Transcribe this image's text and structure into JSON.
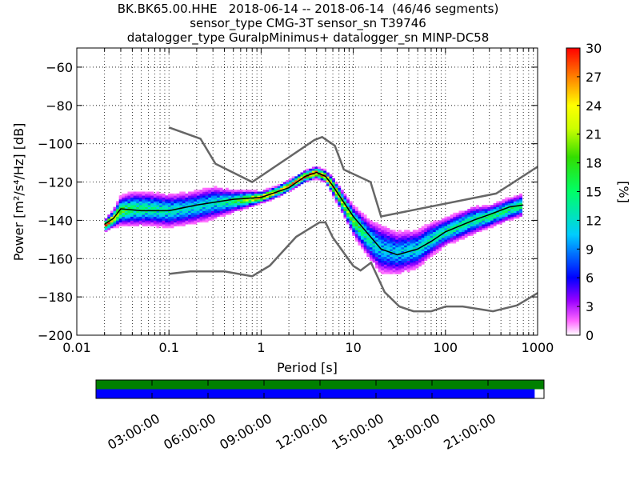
{
  "title_lines": [
    "BK.BK65.00.HHE   2018-06-14 -- 2018-06-14  (46/46 segments)",
    "sensor_type CMG-3T sensor_sn T39746",
    "datalogger_type GuralpMinimus+ datalogger_sn MINP-DC58"
  ],
  "chart_data": {
    "type": "heatmap",
    "xlabel": "Period [s]",
    "ylabel": "Power [m²/s⁴/Hz] [dB]",
    "xscale": "log",
    "xlim": [
      0.01,
      1000
    ],
    "ylim": [
      -200,
      -50
    ],
    "xticks": [
      0.01,
      0.1,
      1,
      10,
      100,
      1000
    ],
    "xtick_labels": [
      "0.01",
      "0.1",
      "1",
      "10",
      "100",
      "1000"
    ],
    "yticks": [
      -200,
      -180,
      -160,
      -140,
      -120,
      -100,
      -80,
      -60
    ],
    "ytick_labels": [
      "−200",
      "−180",
      "−160",
      "−140",
      "−120",
      "−100",
      "−80",
      "−60"
    ],
    "grid": true,
    "colorbar": {
      "label": "[%]",
      "range": [
        0,
        30
      ],
      "ticks": [
        0,
        3,
        6,
        9,
        12,
        15,
        18,
        21,
        24,
        27,
        30
      ],
      "tick_labels": [
        "0",
        "3",
        "6",
        "9",
        "12",
        "15",
        "18",
        "21",
        "24",
        "27",
        "30"
      ]
    },
    "band": [
      {
        "x": 0.02,
        "center": -143,
        "half": 2,
        "peak": 26
      },
      {
        "x": 0.025,
        "center": -139,
        "half": 3,
        "peak": 22
      },
      {
        "x": 0.03,
        "center": -135,
        "half": 5,
        "peak": 17
      },
      {
        "x": 0.04,
        "center": -134,
        "half": 6,
        "peak": 14
      },
      {
        "x": 0.06,
        "center": -134,
        "half": 6,
        "peak": 13
      },
      {
        "x": 0.1,
        "center": -135,
        "half": 6,
        "peak": 12
      },
      {
        "x": 0.15,
        "center": -134,
        "half": 6,
        "peak": 11
      },
      {
        "x": 0.2,
        "center": -133,
        "half": 6,
        "peak": 11
      },
      {
        "x": 0.3,
        "center": -131,
        "half": 6,
        "peak": 11
      },
      {
        "x": 0.5,
        "center": -130,
        "half": 4,
        "peak": 14
      },
      {
        "x": 1,
        "center": -128,
        "half": 2,
        "peak": 24
      },
      {
        "x": 1.5,
        "center": -125,
        "half": 2,
        "peak": 22
      },
      {
        "x": 2,
        "center": -122,
        "half": 2,
        "peak": 22
      },
      {
        "x": 3,
        "center": -117,
        "half": 2,
        "peak": 26
      },
      {
        "x": 4,
        "center": -115,
        "half": 2,
        "peak": 26
      },
      {
        "x": 5,
        "center": -117,
        "half": 2,
        "peak": 25
      },
      {
        "x": 6,
        "center": -122,
        "half": 3,
        "peak": 22
      },
      {
        "x": 8,
        "center": -132,
        "half": 4,
        "peak": 19
      },
      {
        "x": 10,
        "center": -140,
        "half": 5,
        "peak": 17
      },
      {
        "x": 15,
        "center": -150,
        "half": 7,
        "peak": 12
      },
      {
        "x": 20,
        "center": -155,
        "half": 9,
        "peak": 10
      },
      {
        "x": 30,
        "center": -157,
        "half": 8,
        "peak": 10
      },
      {
        "x": 50,
        "center": -155,
        "half": 7,
        "peak": 11
      },
      {
        "x": 70,
        "center": -150,
        "half": 6,
        "peak": 12
      },
      {
        "x": 100,
        "center": -146,
        "half": 5,
        "peak": 13
      },
      {
        "x": 200,
        "center": -140,
        "half": 5,
        "peak": 13
      },
      {
        "x": 300,
        "center": -138,
        "half": 4,
        "peak": 14
      },
      {
        "x": 500,
        "center": -134,
        "half": 4,
        "peak": 14
      },
      {
        "x": 700,
        "center": -132,
        "half": 4,
        "peak": 14
      }
    ],
    "mode_line": [
      [
        0.02,
        -142
      ],
      [
        0.025,
        -139
      ],
      [
        0.03,
        -134
      ],
      [
        0.05,
        -135
      ],
      [
        0.1,
        -135
      ],
      [
        0.2,
        -132
      ],
      [
        0.5,
        -129
      ],
      [
        1,
        -128
      ],
      [
        2,
        -123
      ],
      [
        3,
        -117
      ],
      [
        4,
        -115
      ],
      [
        5,
        -117
      ],
      [
        6,
        -122
      ],
      [
        8,
        -131
      ],
      [
        10,
        -138
      ],
      [
        15,
        -148
      ],
      [
        20,
        -155
      ],
      [
        30,
        -158
      ],
      [
        50,
        -155
      ],
      [
        70,
        -151
      ],
      [
        100,
        -146
      ],
      [
        200,
        -140
      ],
      [
        300,
        -137
      ],
      [
        500,
        -133
      ],
      [
        700,
        -132
      ]
    ],
    "nhnm": [
      [
        0.1,
        -91.5
      ],
      [
        0.22,
        -97.4
      ],
      [
        0.32,
        -110.5
      ],
      [
        0.8,
        -120
      ],
      [
        3.8,
        -98
      ],
      [
        4.6,
        -96.5
      ],
      [
        6.3,
        -101
      ],
      [
        7.9,
        -113.5
      ],
      [
        15.4,
        -120
      ],
      [
        20,
        -138
      ],
      [
        354.8,
        -126
      ],
      [
        1000,
        -112
      ]
    ],
    "nlnm": [
      [
        0.1,
        -168
      ],
      [
        0.17,
        -166.7
      ],
      [
        0.4,
        -166.7
      ],
      [
        0.8,
        -169.2
      ],
      [
        1.24,
        -163.7
      ],
      [
        2.4,
        -148.6
      ],
      [
        4.3,
        -141.1
      ],
      [
        5,
        -141.1
      ],
      [
        6,
        -149
      ],
      [
        10,
        -163.8
      ],
      [
        12,
        -166.2
      ],
      [
        15.6,
        -162.1
      ],
      [
        21.9,
        -177.5
      ],
      [
        31.6,
        -185
      ],
      [
        45,
        -187.5
      ],
      [
        70,
        -187.5
      ],
      [
        101,
        -185
      ],
      [
        154,
        -185
      ],
      [
        328,
        -187.5
      ],
      [
        600,
        -184.4
      ],
      [
        1000,
        -178
      ]
    ],
    "time_axis": {
      "tick_labels": [
        "03:00:00",
        "06:00:00",
        "09:00:00",
        "12:00:00",
        "15:00:00",
        "18:00:00",
        "21:00:00"
      ],
      "tick_hours": [
        3,
        6,
        9,
        12,
        15,
        18,
        21
      ],
      "range_hours": [
        0,
        24
      ],
      "segments": [
        {
          "color": "#008000",
          "start": 0,
          "end": 24
        },
        {
          "color": "#0000ff",
          "start": 0,
          "end": 23.5
        }
      ]
    }
  }
}
